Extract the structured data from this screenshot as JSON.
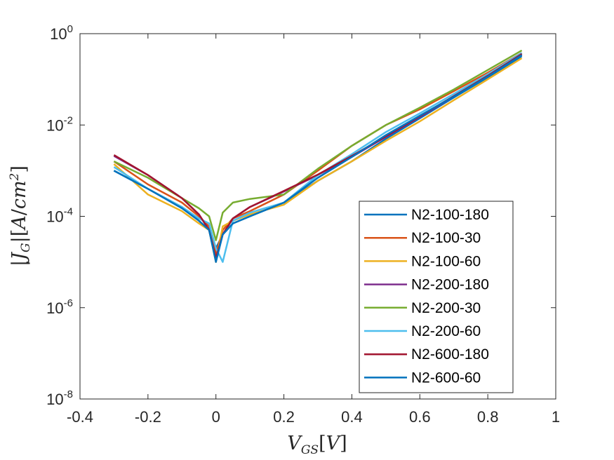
{
  "chart_data": {
    "type": "line",
    "xlabel": "V_{GS}[V]",
    "ylabel": "|J_G|[A/cm^2]",
    "xlim": [
      -0.4,
      1
    ],
    "ylim": [
      1e-08,
      1
    ],
    "yscale": "log",
    "xticks": [
      {
        "v": -0.4,
        "label": "-0.4"
      },
      {
        "v": -0.2,
        "label": "-0.2"
      },
      {
        "v": 0,
        "label": "0"
      },
      {
        "v": 0.2,
        "label": "0.2"
      },
      {
        "v": 0.4,
        "label": "0.4"
      },
      {
        "v": 0.6,
        "label": "0.6"
      },
      {
        "v": 0.8,
        "label": "0.8"
      },
      {
        "v": 1,
        "label": "1"
      }
    ],
    "yticks": [
      {
        "v": 1e-08,
        "base": "10",
        "exp": "-8"
      },
      {
        "v": 1e-06,
        "base": "10",
        "exp": "-6"
      },
      {
        "v": 0.0001,
        "base": "10",
        "exp": "-4"
      },
      {
        "v": 0.01,
        "base": "10",
        "exp": "-2"
      },
      {
        "v": 1,
        "base": "10",
        "exp": "0"
      }
    ],
    "grid": false,
    "legend_position": "bottom-right",
    "series": [
      {
        "name": "N2-100-180",
        "color": "#0072BD",
        "x": [
          -0.3,
          -0.2,
          -0.1,
          -0.05,
          -0.02,
          0,
          0.02,
          0.05,
          0.1,
          0.2,
          0.3,
          0.4,
          0.5,
          0.6,
          0.7,
          0.8,
          0.9
        ],
        "y": [
          0.001,
          0.0004,
          0.00016,
          8e-05,
          5e-05,
          2e-05,
          4e-05,
          7e-05,
          0.0001,
          0.0002,
          0.0006,
          0.0016,
          0.005,
          0.014,
          0.04,
          0.11,
          0.32
        ]
      },
      {
        "name": "N2-100-30",
        "color": "#D95319",
        "x": [
          -0.3,
          -0.2,
          -0.1,
          -0.05,
          -0.02,
          0,
          0.02,
          0.05,
          0.1,
          0.2,
          0.3,
          0.4,
          0.5,
          0.6,
          0.7,
          0.8,
          0.9
        ],
        "y": [
          0.0016,
          0.0005,
          0.0002,
          0.0001,
          6e-05,
          1.5e-05,
          5e-05,
          9e-05,
          0.00013,
          0.0003,
          0.001,
          0.0035,
          0.01,
          0.022,
          0.055,
          0.14,
          0.38
        ]
      },
      {
        "name": "N2-100-60",
        "color": "#EDB120",
        "x": [
          -0.3,
          -0.2,
          -0.1,
          -0.05,
          -0.02,
          0,
          0.02,
          0.05,
          0.1,
          0.2,
          0.3,
          0.4,
          0.5,
          0.6,
          0.7,
          0.8,
          0.9
        ],
        "y": [
          0.0014,
          0.0003,
          0.00013,
          7e-05,
          5e-05,
          1e-05,
          6e-05,
          8e-05,
          0.00011,
          0.00018,
          0.0006,
          0.0016,
          0.0045,
          0.012,
          0.035,
          0.1,
          0.29
        ]
      },
      {
        "name": "N2-200-180",
        "color": "#7E2F8E",
        "x": [
          -0.3,
          -0.2,
          -0.1,
          -0.05,
          -0.02,
          0,
          0.02,
          0.05,
          0.1,
          0.2,
          0.3,
          0.4,
          0.5,
          0.6,
          0.7,
          0.8,
          0.9
        ],
        "y": [
          0.0021,
          0.0008,
          0.00025,
          0.00011,
          5e-05,
          1.2e-05,
          4e-05,
          9e-05,
          0.00016,
          0.00035,
          0.0008,
          0.002,
          0.0055,
          0.015,
          0.042,
          0.12,
          0.35
        ]
      },
      {
        "name": "N2-200-30",
        "color": "#77AC30",
        "x": [
          -0.3,
          -0.2,
          -0.1,
          -0.05,
          -0.02,
          0,
          0.02,
          0.05,
          0.1,
          0.2,
          0.3,
          0.4,
          0.5,
          0.6,
          0.7,
          0.8,
          0.9
        ],
        "y": [
          0.0016,
          0.0007,
          0.00025,
          0.00015,
          0.0001,
          3e-05,
          0.00012,
          0.0002,
          0.00024,
          0.0003,
          0.0011,
          0.0035,
          0.01,
          0.024,
          0.06,
          0.16,
          0.43
        ]
      },
      {
        "name": "N2-200-60",
        "color": "#4DBEEE",
        "x": [
          -0.3,
          -0.2,
          -0.1,
          -0.05,
          -0.02,
          0,
          0.02,
          0.05,
          0.1,
          0.2,
          0.3,
          0.4,
          0.5,
          0.6,
          0.7,
          0.8,
          0.9
        ],
        "y": [
          0.0012,
          0.0004,
          0.00016,
          9e-05,
          7e-05,
          2e-05,
          1e-05,
          8e-05,
          0.00012,
          0.0002,
          0.0008,
          0.0023,
          0.007,
          0.018,
          0.048,
          0.13,
          0.38
        ]
      },
      {
        "name": "N2-600-180",
        "color": "#A2142F",
        "x": [
          -0.3,
          -0.2,
          -0.1,
          -0.05,
          -0.02,
          0,
          0.02,
          0.05,
          0.1,
          0.2,
          0.3,
          0.4,
          0.5,
          0.6,
          0.7,
          0.8,
          0.9
        ],
        "y": [
          0.0022,
          0.0008,
          0.00025,
          0.00011,
          5e-05,
          1.2e-05,
          4e-05,
          9e-05,
          0.00016,
          0.00036,
          0.00082,
          0.0021,
          0.0056,
          0.0155,
          0.043,
          0.12,
          0.36
        ]
      },
      {
        "name": "N2-600-60",
        "color": "#0072BD",
        "x": [
          -0.3,
          -0.2,
          -0.1,
          -0.05,
          -0.02,
          0,
          0.02,
          0.05,
          0.1,
          0.2,
          0.3,
          0.4,
          0.5,
          0.6,
          0.7,
          0.8,
          0.9
        ],
        "y": [
          0.001,
          0.0004,
          0.00015,
          8e-05,
          5e-05,
          1e-05,
          4e-05,
          7e-05,
          0.0001,
          0.0002,
          0.0007,
          0.002,
          0.006,
          0.016,
          0.042,
          0.115,
          0.34
        ]
      }
    ]
  }
}
